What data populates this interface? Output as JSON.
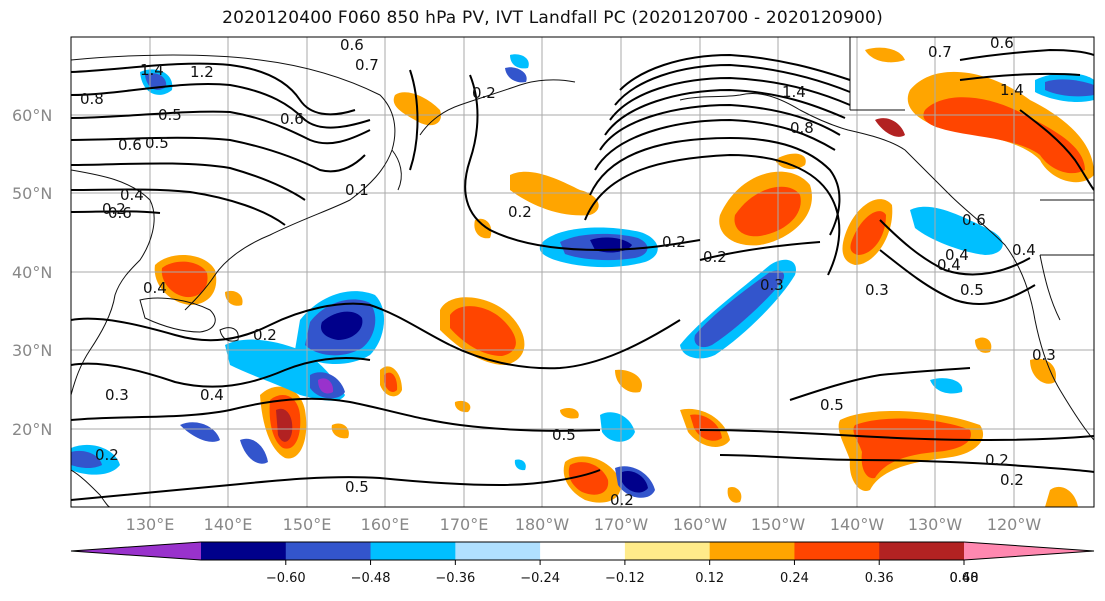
{
  "title": "2020120400 F060 850 hPa PV, IVT Landfall PC (2020120700 - 2020120900)",
  "latitude_labels": [
    "60°N",
    "50°N",
    "40°N",
    "30°N",
    "20°N"
  ],
  "longitude_labels": [
    "130°E",
    "140°E",
    "150°E",
    "160°E",
    "170°E",
    "180°W",
    "170°W",
    "160°W",
    "150°W",
    "140°W",
    "130°W",
    "120°W"
  ],
  "colorbar": {
    "tick_labels": [
      "−0.60",
      "−0.48",
      "−0.36",
      "−0.24",
      "−0.12",
      "0.12",
      "0.24",
      "0.36",
      "0.48",
      "0.60"
    ],
    "colors": [
      "#9932cc",
      "#00008b",
      "#3355cc",
      "#00bfff",
      "#b0e0ff",
      "#ffffff",
      "#ffeb8a",
      "#ffa500",
      "#ff4500",
      "#b22222",
      "#ff88b0"
    ]
  },
  "contour_labels": [
    "1.4",
    "1.2",
    "0.8",
    "0.5",
    "0.6",
    "0.5",
    "0.6",
    "0.7",
    "0.6",
    "0.4",
    "0.2",
    "0.4",
    "0.2",
    "0.3",
    "0.4",
    "0.5",
    "0.2",
    "0.5",
    "0.2",
    "0.2",
    "0.2",
    "0.5",
    "0.3",
    "0.4",
    "0.6",
    "0.7",
    "0.6",
    "1.4",
    "0.3",
    "0.2",
    "0.2",
    "0.2",
    "0.8",
    "1.4",
    "0.4",
    "0.1",
    "0.6",
    "0.4",
    "0.5",
    "0.3",
    "0.2"
  ]
}
